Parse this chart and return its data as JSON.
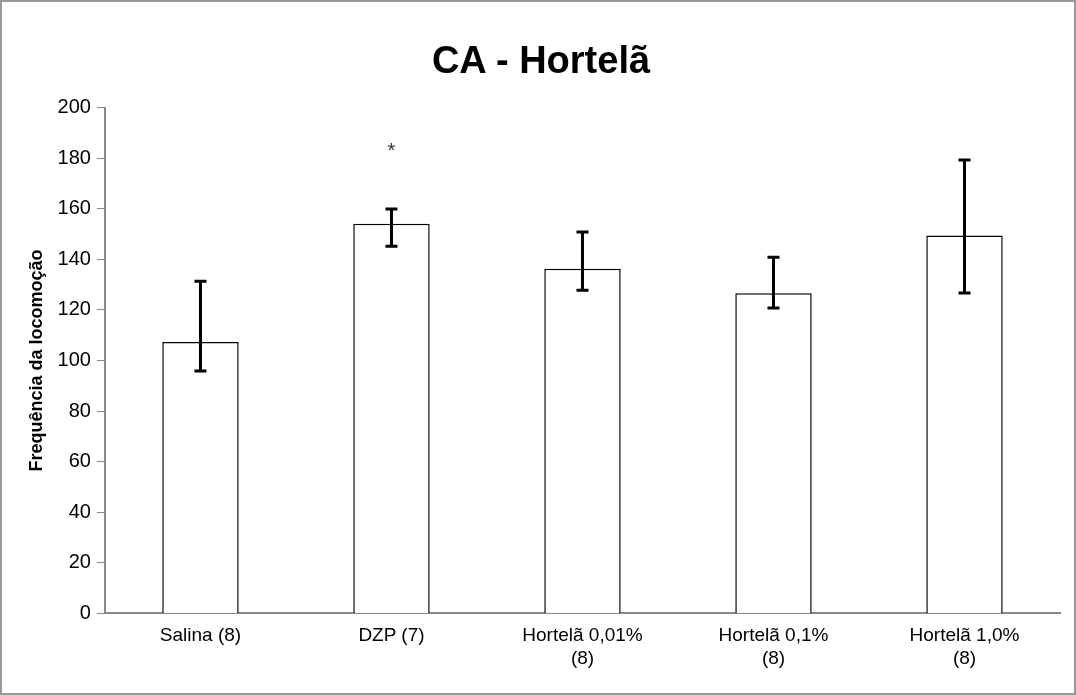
{
  "chart_data": {
    "type": "bar",
    "title": "CA - Hortelã",
    "ylabel": "Frequência da locomoção",
    "categories": [
      "Salina (8)",
      "DZP (7)",
      "Hortelã 0,01% (8)",
      "Hortelã 0,1% (8)",
      "Hortelã 1,0% (8)"
    ],
    "values": [
      107.3,
      154.1,
      136.3,
      126.6,
      149.4
    ],
    "errors": [
      [
        95.8,
        131.3
      ],
      [
        145.2,
        159.9
      ],
      [
        127.8,
        150.8
      ],
      [
        120.8,
        140.8
      ],
      [
        126.7,
        179.3
      ]
    ],
    "color": "#ffffff",
    "ylim": [
      0,
      200
    ],
    "yticks": [
      0,
      20,
      40,
      60,
      80,
      100,
      120,
      140,
      160,
      180,
      200
    ],
    "grid": false,
    "legend": false,
    "annotations": [
      "*"
    ]
  }
}
